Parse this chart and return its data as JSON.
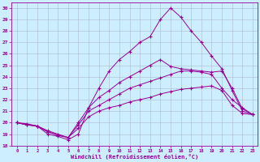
{
  "xlabel": "Windchill (Refroidissement éolien,°C)",
  "background_color": "#cceeff",
  "line_color": "#990099",
  "grid_color": "#aabbcc",
  "lines": {
    "x": [
      0,
      1,
      2,
      3,
      4,
      5,
      6,
      7,
      8,
      9,
      10,
      11,
      12,
      13,
      14,
      15,
      16,
      17,
      18,
      19,
      20,
      21,
      22,
      23
    ],
    "y1": [
      20.0,
      19.8,
      19.7,
      19.3,
      19.0,
      18.7,
      19.5,
      20.5,
      21.0,
      21.3,
      21.5,
      21.8,
      22.0,
      22.2,
      22.5,
      22.7,
      22.9,
      23.0,
      23.1,
      23.2,
      22.8,
      21.5,
      20.8,
      20.7
    ],
    "y2": [
      20.0,
      19.8,
      19.7,
      19.2,
      18.9,
      18.7,
      19.8,
      21.0,
      21.5,
      22.0,
      22.5,
      23.0,
      23.3,
      23.6,
      23.9,
      24.2,
      24.5,
      24.5,
      24.4,
      24.2,
      23.0,
      22.0,
      21.3,
      20.7
    ],
    "y3": [
      20.0,
      19.9,
      19.7,
      19.2,
      18.9,
      18.7,
      20.0,
      21.3,
      22.2,
      22.8,
      23.5,
      24.0,
      24.5,
      25.0,
      25.5,
      24.9,
      24.7,
      24.6,
      24.5,
      24.4,
      24.5,
      23.0,
      21.2,
      20.7
    ],
    "y4": [
      20.0,
      19.8,
      19.7,
      19.0,
      18.8,
      18.5,
      19.0,
      21.3,
      23.0,
      24.5,
      25.5,
      26.2,
      27.0,
      27.5,
      29.0,
      30.0,
      29.2,
      28.0,
      27.0,
      25.8,
      24.7,
      22.8,
      21.0,
      20.7
    ]
  },
  "ylim": [
    18,
    30.5
  ],
  "xlim": [
    -0.5,
    23.5
  ],
  "yticks": [
    18,
    19,
    20,
    21,
    22,
    23,
    24,
    25,
    26,
    27,
    28,
    29,
    30
  ],
  "xticks": [
    0,
    1,
    2,
    3,
    4,
    5,
    6,
    7,
    8,
    9,
    10,
    11,
    12,
    13,
    14,
    15,
    16,
    17,
    18,
    19,
    20,
    21,
    22,
    23
  ]
}
